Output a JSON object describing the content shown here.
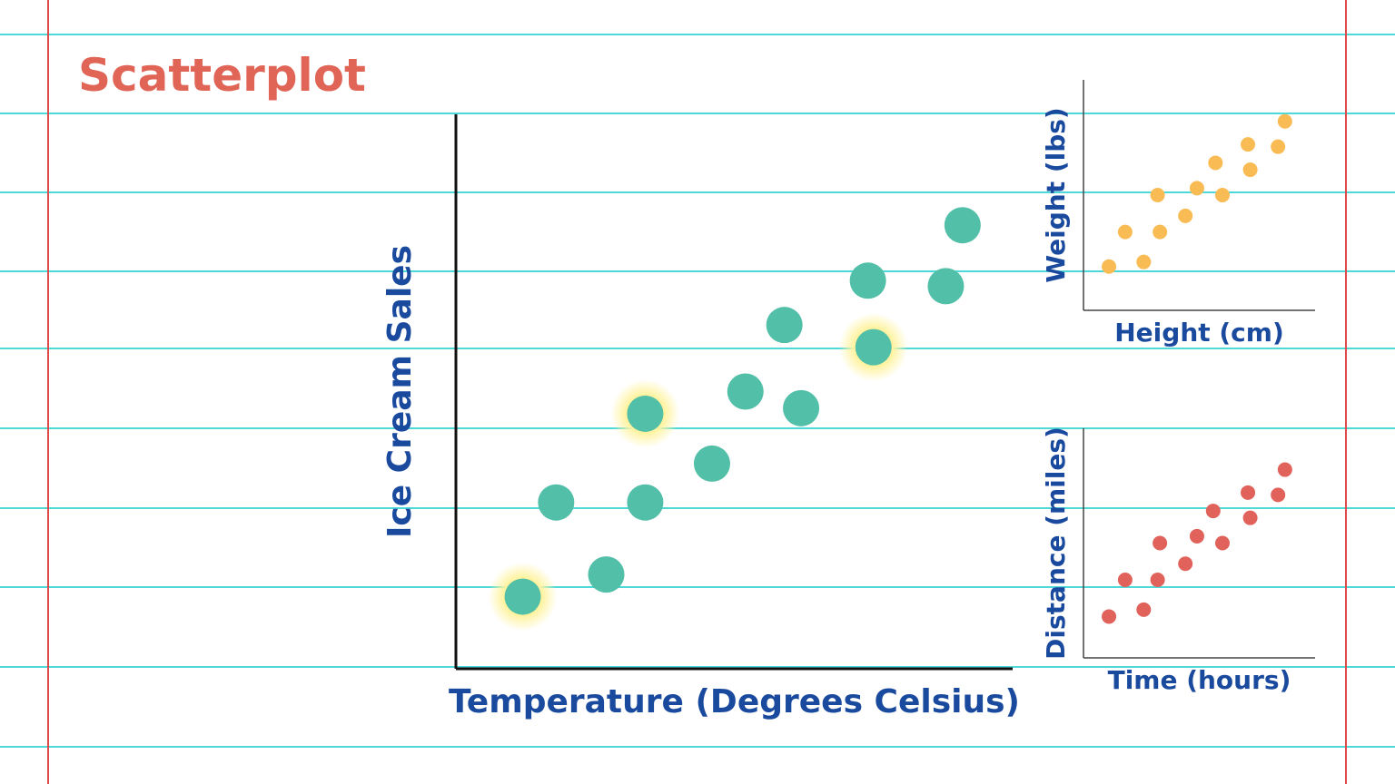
{
  "title": "Scatterplot",
  "chart_data": [
    {
      "type": "scatter",
      "x_label": "Temperature (Degrees Celsius)",
      "y_label": "Ice Cream Sales",
      "color": "#52bfa8",
      "x": [
        12,
        18,
        27,
        34,
        34,
        46,
        52,
        59,
        62,
        74,
        75,
        88,
        91
      ],
      "y": [
        13,
        30,
        17,
        46,
        30,
        37,
        50,
        62,
        47,
        70,
        58,
        69,
        80
      ],
      "highlighted": [
        true,
        false,
        false,
        true,
        false,
        false,
        false,
        false,
        false,
        false,
        true,
        false,
        false
      ],
      "xlim": [
        0,
        100
      ],
      "ylim": [
        0,
        100
      ]
    },
    {
      "type": "scatter",
      "x_label": "Height (cm)",
      "y_label": "Weight (lbs)",
      "color": "#f9bb54",
      "x": [
        11,
        18,
        26,
        33,
        32,
        44,
        49,
        57,
        60,
        71,
        72,
        84,
        87
      ],
      "y": [
        19,
        34,
        21,
        34,
        50,
        41,
        53,
        64,
        50,
        72,
        61,
        71,
        82
      ],
      "xlim": [
        0,
        100
      ],
      "ylim": [
        0,
        100
      ]
    },
    {
      "type": "scatter",
      "x_label": "Time (hours)",
      "y_label": "Distance (miles)",
      "color": "#e0625a",
      "x": [
        11,
        18,
        26,
        33,
        32,
        44,
        49,
        56,
        60,
        71,
        72,
        84,
        87
      ],
      "y": [
        18,
        34,
        21,
        50,
        34,
        41,
        53,
        64,
        50,
        72,
        61,
        71,
        82
      ],
      "xlim": [
        0,
        100
      ],
      "ylim": [
        0,
        100
      ]
    }
  ]
}
